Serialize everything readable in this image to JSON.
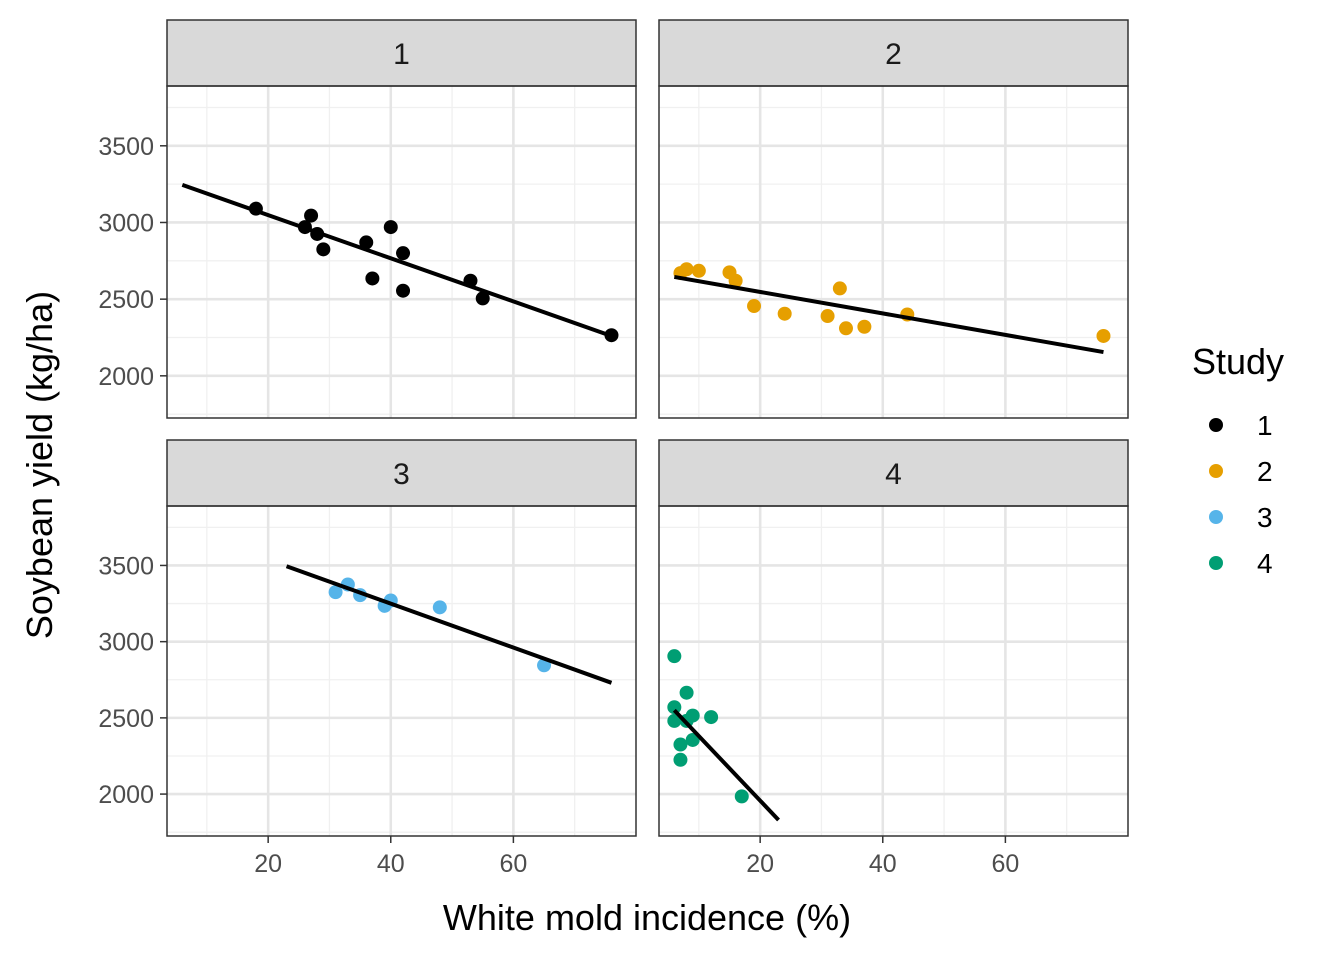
{
  "chart_data": {
    "type": "scatter",
    "xlabel": "White mold incidence (%)",
    "ylabel": "Soybean yield (kg/ha)",
    "xlim": [
      3.5,
      80
    ],
    "ylim": [
      1725,
      3890
    ],
    "x_ticks": [
      20,
      40,
      60
    ],
    "y_ticks": [
      2000,
      2500,
      3000,
      3500
    ],
    "grid": true,
    "legend": {
      "title": "Study",
      "position": "right",
      "entries": [
        {
          "label": "1",
          "color": "#000000"
        },
        {
          "label": "2",
          "color": "#E69F00"
        },
        {
          "label": "3",
          "color": "#56B4E9"
        },
        {
          "label": "4",
          "color": "#009E73"
        }
      ]
    },
    "facets": [
      {
        "label": "1",
        "color": "#000000",
        "points": [
          [
            18,
            3090
          ],
          [
            26,
            2970
          ],
          [
            27,
            3045
          ],
          [
            28,
            2925
          ],
          [
            29,
            2825
          ],
          [
            36,
            2870
          ],
          [
            37,
            2635
          ],
          [
            40,
            2970
          ],
          [
            42,
            2800
          ],
          [
            42,
            2555
          ],
          [
            53,
            2620
          ],
          [
            55,
            2505
          ],
          [
            76,
            2265
          ]
        ],
        "fit": [
          [
            6,
            3245
          ],
          [
            76,
            2260
          ]
        ]
      },
      {
        "label": "2",
        "color": "#E69F00",
        "points": [
          [
            7,
            2670
          ],
          [
            8,
            2695
          ],
          [
            10,
            2685
          ],
          [
            15,
            2675
          ],
          [
            16,
            2620
          ],
          [
            19,
            2455
          ],
          [
            24,
            2405
          ],
          [
            31,
            2390
          ],
          [
            33,
            2570
          ],
          [
            34,
            2310
          ],
          [
            37,
            2320
          ],
          [
            44,
            2400
          ],
          [
            76,
            2260
          ]
        ],
        "fit": [
          [
            6,
            2645
          ],
          [
            76,
            2155
          ]
        ]
      },
      {
        "label": "3",
        "color": "#56B4E9",
        "points": [
          [
            31,
            3325
          ],
          [
            33,
            3375
          ],
          [
            35,
            3305
          ],
          [
            39,
            3235
          ],
          [
            40,
            3270
          ],
          [
            48,
            3225
          ],
          [
            65,
            2845
          ]
        ],
        "fit": [
          [
            23,
            3495
          ],
          [
            76,
            2730
          ]
        ]
      },
      {
        "label": "4",
        "color": "#009E73",
        "points": [
          [
            6,
            2905
          ],
          [
            6,
            2570
          ],
          [
            6,
            2480
          ],
          [
            7,
            2325
          ],
          [
            7,
            2225
          ],
          [
            8,
            2665
          ],
          [
            8,
            2480
          ],
          [
            9,
            2515
          ],
          [
            9,
            2355
          ],
          [
            12,
            2505
          ],
          [
            17,
            1985
          ]
        ],
        "fit": [
          [
            6,
            2550
          ],
          [
            23,
            1830
          ]
        ]
      }
    ]
  }
}
